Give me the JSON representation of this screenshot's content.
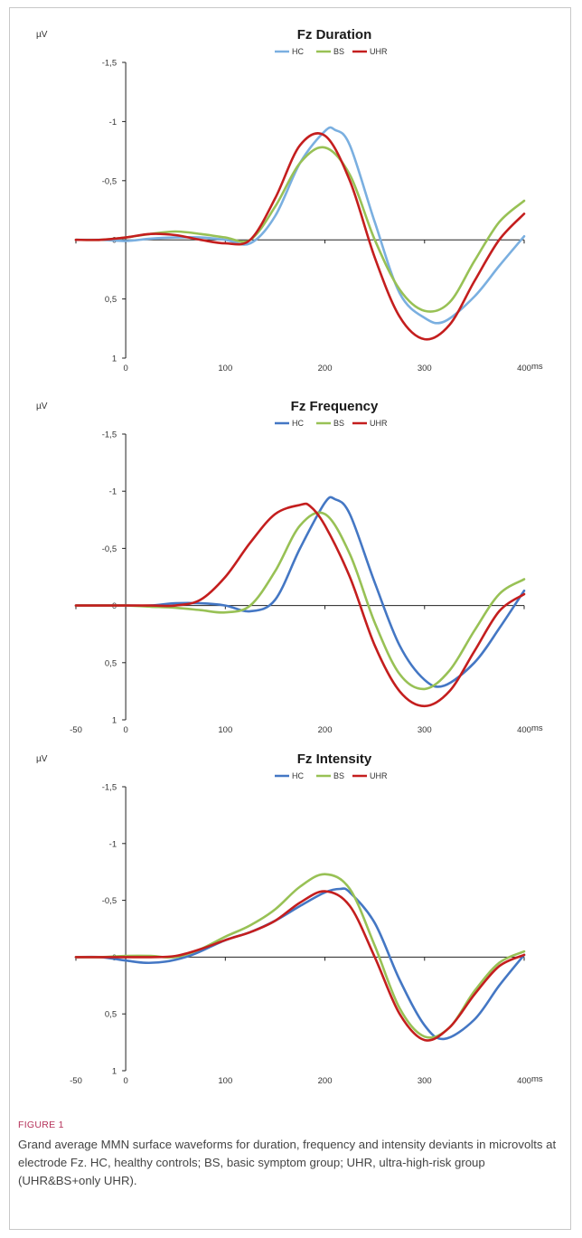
{
  "chart_data": [
    {
      "type": "line",
      "title": "Fz Duration",
      "ylabel": "µV",
      "xunit": "ms",
      "ylim": [
        -1.5,
        1
      ],
      "y_inverted": true,
      "yticks": [
        "-1,5",
        "-1",
        "-0,5",
        "0",
        "0,5",
        "1"
      ],
      "xticks": [
        "",
        "0",
        "100",
        "200",
        "300",
        "400"
      ],
      "legend_position": "top-center",
      "series": [
        {
          "name": "HC",
          "color": "#7aafe0",
          "x": [
            -50,
            -25,
            0,
            25,
            50,
            75,
            100,
            125,
            150,
            175,
            200,
            210,
            225,
            250,
            275,
            300,
            320,
            350,
            375,
            400
          ],
          "y": [
            0,
            0,
            0.01,
            -0.01,
            -0.02,
            -0.02,
            0,
            0.03,
            -0.2,
            -0.65,
            -0.92,
            -0.93,
            -0.8,
            -0.15,
            0.45,
            0.66,
            0.69,
            0.48,
            0.22,
            -0.03
          ]
        },
        {
          "name": "BS",
          "color": "#98c155",
          "x": [
            -50,
            -25,
            0,
            25,
            50,
            75,
            100,
            125,
            150,
            175,
            200,
            225,
            250,
            275,
            300,
            325,
            350,
            375,
            400
          ],
          "y": [
            0,
            0,
            -0.02,
            -0.05,
            -0.07,
            -0.05,
            -0.02,
            0,
            -0.28,
            -0.65,
            -0.78,
            -0.55,
            0,
            0.42,
            0.6,
            0.53,
            0.18,
            -0.15,
            -0.33
          ]
        },
        {
          "name": "UHR",
          "color": "#c41e1e",
          "x": [
            -50,
            -25,
            0,
            25,
            50,
            75,
            100,
            125,
            150,
            175,
            200,
            225,
            250,
            275,
            300,
            325,
            350,
            375,
            400
          ],
          "y": [
            0,
            0,
            -0.02,
            -0.05,
            -0.04,
            0,
            0.03,
            0,
            -0.35,
            -0.8,
            -0.88,
            -0.5,
            0.15,
            0.65,
            0.84,
            0.72,
            0.35,
            0,
            -0.22
          ]
        }
      ]
    },
    {
      "type": "line",
      "title": "Fz Frequency",
      "ylabel": "µV",
      "xunit": "ms",
      "ylim": [
        -1.5,
        1
      ],
      "y_inverted": true,
      "yticks": [
        "-1,5",
        "-1",
        "-0,5",
        "0",
        "0,5",
        "1"
      ],
      "xticks": [
        "-50",
        "0",
        "100",
        "200",
        "300",
        "400"
      ],
      "legend_position": "top-center",
      "series": [
        {
          "name": "HC",
          "color": "#4477c4",
          "x": [
            -50,
            -25,
            0,
            25,
            50,
            75,
            100,
            125,
            150,
            175,
            200,
            210,
            225,
            250,
            275,
            300,
            320,
            350,
            375,
            400
          ],
          "y": [
            0,
            0,
            0,
            0,
            -0.02,
            -0.02,
            0,
            0.05,
            -0.05,
            -0.5,
            -0.9,
            -0.93,
            -0.8,
            -0.2,
            0.35,
            0.65,
            0.7,
            0.5,
            0.2,
            -0.13
          ]
        },
        {
          "name": "BS",
          "color": "#98c155",
          "x": [
            -50,
            -25,
            0,
            25,
            50,
            75,
            100,
            125,
            150,
            175,
            200,
            225,
            250,
            275,
            300,
            325,
            350,
            375,
            400
          ],
          "y": [
            0,
            0,
            0,
            0.01,
            0.02,
            0.04,
            0.06,
            0,
            -0.3,
            -0.7,
            -0.8,
            -0.45,
            0.15,
            0.6,
            0.73,
            0.57,
            0.22,
            -0.1,
            -0.23
          ]
        },
        {
          "name": "UHR",
          "color": "#c41e1e",
          "x": [
            -50,
            -25,
            0,
            25,
            50,
            75,
            100,
            125,
            150,
            175,
            185,
            200,
            225,
            250,
            275,
            300,
            325,
            350,
            375,
            400
          ],
          "y": [
            0,
            0,
            0,
            0,
            0,
            -0.05,
            -0.25,
            -0.55,
            -0.8,
            -0.88,
            -0.87,
            -0.7,
            -0.25,
            0.35,
            0.75,
            0.88,
            0.75,
            0.4,
            0.05,
            -0.1
          ]
        }
      ]
    },
    {
      "type": "line",
      "title": "Fz Intensity",
      "ylabel": "µV",
      "xunit": "ms",
      "ylim": [
        -1.5,
        1
      ],
      "y_inverted": true,
      "yticks": [
        "-1,5",
        "-1",
        "-0,5",
        "0",
        "0,5",
        "1"
      ],
      "xticks": [
        "-50",
        "0",
        "100",
        "200",
        "300",
        "400"
      ],
      "legend_position": "top-center",
      "series": [
        {
          "name": "HC",
          "color": "#4477c4",
          "x": [
            -50,
            -25,
            0,
            20,
            40,
            60,
            75,
            100,
            125,
            150,
            175,
            200,
            215,
            225,
            250,
            275,
            300,
            320,
            350,
            375,
            400
          ],
          "y": [
            0,
            0,
            0.03,
            0.05,
            0.04,
            0,
            -0.05,
            -0.15,
            -0.22,
            -0.32,
            -0.45,
            -0.57,
            -0.6,
            -0.57,
            -0.3,
            0.2,
            0.6,
            0.72,
            0.55,
            0.25,
            -0.02
          ]
        },
        {
          "name": "BS",
          "color": "#98c155",
          "x": [
            -50,
            -25,
            0,
            25,
            50,
            75,
            100,
            125,
            150,
            175,
            200,
            225,
            250,
            275,
            300,
            325,
            350,
            375,
            400
          ],
          "y": [
            0,
            0,
            -0.01,
            -0.01,
            0,
            -0.07,
            -0.18,
            -0.28,
            -0.42,
            -0.62,
            -0.73,
            -0.6,
            -0.1,
            0.45,
            0.7,
            0.62,
            0.3,
            0.05,
            -0.05
          ]
        },
        {
          "name": "UHR",
          "color": "#c41e1e",
          "x": [
            -50,
            -25,
            0,
            25,
            50,
            75,
            100,
            125,
            150,
            175,
            200,
            225,
            250,
            275,
            300,
            325,
            350,
            375,
            400
          ],
          "y": [
            0,
            0,
            0,
            0,
            -0.01,
            -0.07,
            -0.15,
            -0.22,
            -0.32,
            -0.48,
            -0.58,
            -0.45,
            0,
            0.5,
            0.73,
            0.62,
            0.33,
            0.08,
            -0.02
          ]
        }
      ]
    }
  ],
  "caption": {
    "label": "FIGURE 1",
    "text": "Grand average MMN surface waveforms for duration, frequency and intensity deviants in microvolts at electrode Fz. HC, healthy controls; BS, basic symptom group; UHR, ultra-high-risk group (UHR&BS+only UHR)."
  }
}
